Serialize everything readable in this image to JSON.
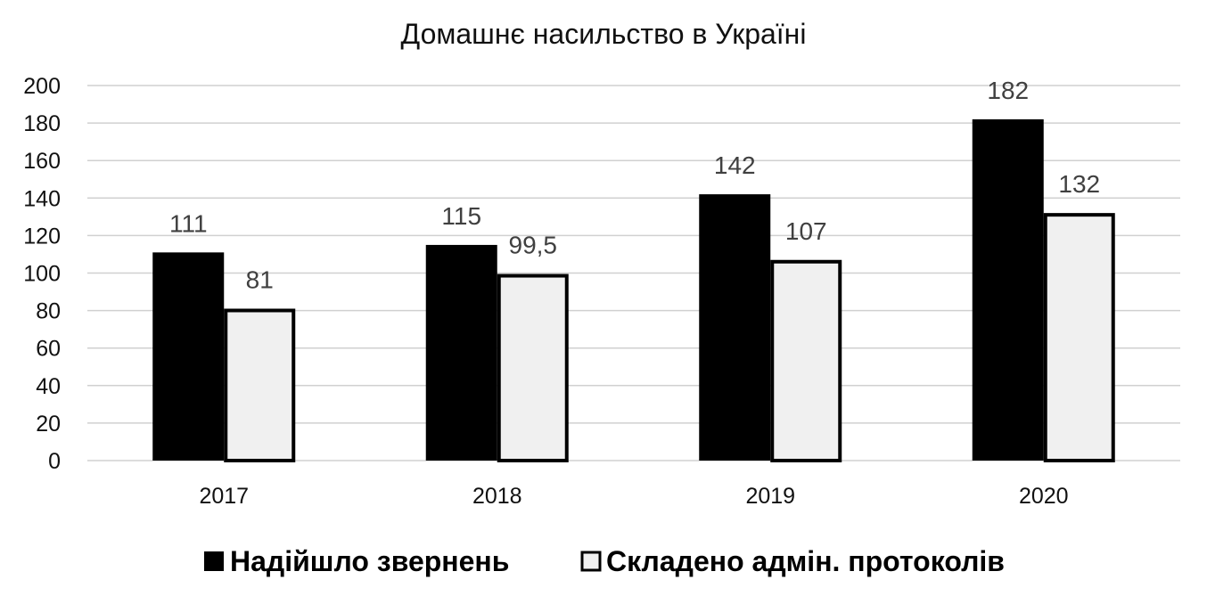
{
  "chart_data": {
    "type": "bar",
    "title": "Домашнє насильство в Україні",
    "xlabel": "",
    "ylabel": "",
    "categories": [
      "2017",
      "2018",
      "2019",
      "2020"
    ],
    "series": [
      {
        "name": "Надійшло звернень",
        "values": [
          111,
          115,
          142,
          182
        ],
        "labels": [
          "111",
          "115",
          "142",
          "182"
        ],
        "color": "#000000"
      },
      {
        "name": "Складено адмін. протоколів",
        "values": [
          81,
          99.5,
          107,
          132
        ],
        "labels": [
          "81",
          "99,5",
          "107",
          "132"
        ],
        "color": "#f0f0f0",
        "outline": "#000000"
      }
    ],
    "ylim": [
      0,
      200
    ],
    "yticks": [
      0,
      20,
      40,
      60,
      80,
      100,
      120,
      140,
      160,
      180,
      200
    ],
    "grid": true,
    "legend": "bottom"
  }
}
